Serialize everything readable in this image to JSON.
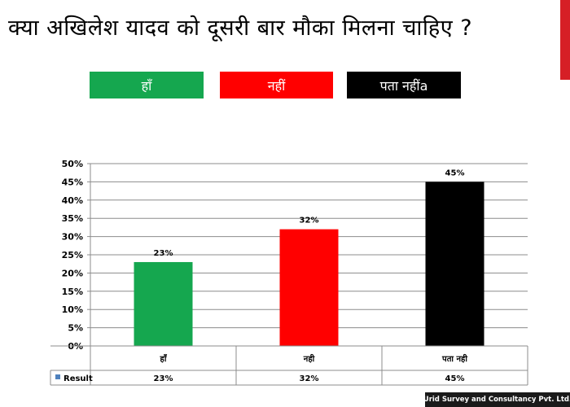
{
  "title": "क्या अखिलेश यादव को दूसरी बार मौका मिलना चाहिए ?",
  "legend": [
    {
      "label": "हाँ",
      "color": "#15a74f"
    },
    {
      "label": "नहीं",
      "color": "#ff0000"
    },
    {
      "label": "पता नहींa",
      "color": "#000000"
    }
  ],
  "footer": "Urid Survey and Consultancy Pvt. Ltd.",
  "chart_data": {
    "type": "bar",
    "categories": [
      "हाँ",
      "नही",
      "पता नही"
    ],
    "series": [
      {
        "name": "Result",
        "values": [
          23,
          32,
          45
        ],
        "colors": [
          "#15a74f",
          "#ff0000",
          "#000000"
        ]
      }
    ],
    "data_labels": [
      "23%",
      "32%",
      "45%"
    ],
    "y_ticks": [
      "0%",
      "5%",
      "10%",
      "15%",
      "20%",
      "25%",
      "30%",
      "35%",
      "40%",
      "45%",
      "50%"
    ],
    "ylim": [
      0,
      50
    ],
    "grid": true,
    "data_table": {
      "row_label": "Result",
      "legend_key_color": "#4f81bd",
      "values": [
        "23%",
        "32%",
        "45%"
      ]
    }
  }
}
